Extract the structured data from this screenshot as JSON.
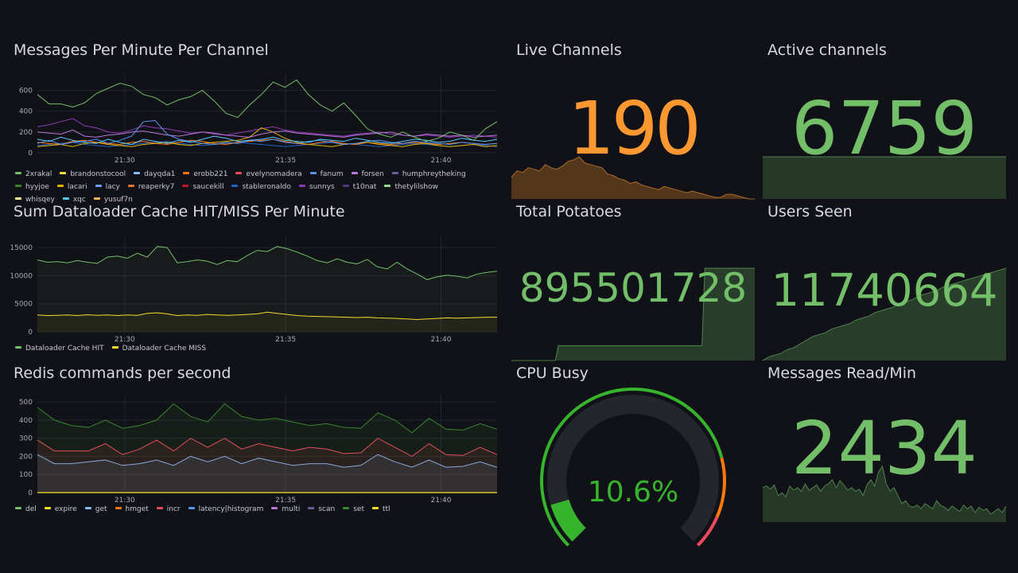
{
  "panels": {
    "messages": {
      "title": "Messages Per Minute Per Channel",
      "legend": [
        {
          "name": "2xrakal",
          "color": "#73bf69"
        },
        {
          "name": "brandonstocool",
          "color": "#fade2a"
        },
        {
          "name": "dayqda1",
          "color": "#8ab8ff"
        },
        {
          "name": "erobb221",
          "color": "#ff780a"
        },
        {
          "name": "evelynomadera",
          "color": "#f2495c"
        },
        {
          "name": "fanum",
          "color": "#5794f2"
        },
        {
          "name": "forsen",
          "color": "#b877d9"
        },
        {
          "name": "humphreytheking",
          "color": "#705da0"
        },
        {
          "name": "hyyjoe",
          "color": "#37872d"
        },
        {
          "name": "lacari",
          "color": "#e0b400"
        },
        {
          "name": "lacy",
          "color": "#6e9fff"
        },
        {
          "name": "reaperky7",
          "color": "#e0752d"
        },
        {
          "name": "saucekill",
          "color": "#c4162a"
        },
        {
          "name": "stableronaldo",
          "color": "#1f60c4"
        },
        {
          "name": "sunnys",
          "color": "#8f3bb8"
        },
        {
          "name": "t10nat",
          "color": "#513a82"
        },
        {
          "name": "thetylilshow",
          "color": "#96d98d"
        },
        {
          "name": "whisqey",
          "color": "#fff899"
        },
        {
          "name": "xqc",
          "color": "#5ac8fa"
        },
        {
          "name": "yusuf7n",
          "color": "#ffb357"
        }
      ]
    },
    "dataloader": {
      "title": "Sum Dataloader Cache HIT/MISS Per Minute",
      "legend": [
        {
          "name": "Dataloader Cache HIT",
          "color": "#73bf69"
        },
        {
          "name": "Dataloader Cache MISS",
          "color": "#fade2a"
        }
      ]
    },
    "redis": {
      "title": "Redis commands per second",
      "legend": [
        {
          "name": "del",
          "color": "#73bf69"
        },
        {
          "name": "expire",
          "color": "#fade2a"
        },
        {
          "name": "get",
          "color": "#8ab8ff"
        },
        {
          "name": "hmget",
          "color": "#ff780a"
        },
        {
          "name": "incr",
          "color": "#f2495c"
        },
        {
          "name": "latency|histogram",
          "color": "#5794f2"
        },
        {
          "name": "multi",
          "color": "#b877d9"
        },
        {
          "name": "scan",
          "color": "#705da0"
        },
        {
          "name": "set",
          "color": "#37872d"
        },
        {
          "name": "ttl",
          "color": "#fade2a"
        }
      ]
    },
    "live_channels": {
      "title": "Live Channels",
      "value": "190",
      "color": "#ff9830"
    },
    "active_channels": {
      "title": "Active channels",
      "value": "6759",
      "color": "#73bf69"
    },
    "total_potatoes": {
      "title": "Total Potatoes",
      "value": "895501728",
      "color": "#73bf69"
    },
    "users_seen": {
      "title": "Users Seen",
      "value": "11740664",
      "color": "#73bf69"
    },
    "cpu_busy": {
      "title": "CPU Busy",
      "value": "10.6%",
      "percent": 10.6,
      "color": "#37b42e"
    },
    "messages_read": {
      "title": "Messages Read/Min",
      "value": "2434",
      "color": "#73bf69"
    }
  },
  "chart_data": [
    {
      "type": "line",
      "title": "Messages Per Minute Per Channel",
      "x_ticks": [
        "21:30",
        "21:35",
        "21:40"
      ],
      "y_ticks": [
        "0",
        "200",
        "400",
        "600"
      ],
      "ylim": [
        0,
        750
      ],
      "series": [
        {
          "name": "2xrakal",
          "values": [
            560,
            470,
            470,
            440,
            480,
            570,
            620,
            670,
            640,
            560,
            530,
            460,
            510,
            540,
            600,
            500,
            380,
            340,
            460,
            560,
            680,
            630,
            700,
            560,
            460,
            400,
            480,
            360,
            230,
            180,
            150,
            200,
            150,
            110,
            140,
            200,
            170,
            120,
            230,
            300
          ]
        },
        {
          "name": "xqc",
          "values": [
            130,
            110,
            150,
            120,
            100,
            90,
            130,
            100,
            80,
            130,
            110,
            90,
            120,
            100,
            130,
            160,
            140,
            110,
            120,
            130,
            150,
            120,
            110,
            100,
            130,
            120,
            110,
            140,
            120,
            100,
            90,
            110,
            130,
            120,
            100,
            110,
            140,
            120,
            110,
            130
          ]
        },
        {
          "name": "fanum",
          "values": [
            90,
            120,
            80,
            100,
            110,
            130,
            90,
            120,
            160,
            300,
            310,
            180,
            130,
            110,
            90,
            80,
            100,
            90,
            120,
            110,
            130,
            100,
            90,
            110,
            120,
            100,
            80,
            90,
            110,
            120,
            100,
            90,
            110,
            100,
            90,
            80,
            100,
            90,
            80,
            90
          ]
        },
        {
          "name": "forsen",
          "values": [
            200,
            190,
            180,
            220,
            160,
            150,
            170,
            180,
            200,
            210,
            190,
            170,
            160,
            180,
            200,
            190,
            170,
            160,
            150,
            180,
            200,
            210,
            190,
            180,
            170,
            160,
            150,
            170,
            180,
            190,
            200,
            170,
            160,
            180,
            170,
            160,
            170,
            150,
            160,
            170
          ]
        },
        {
          "name": "lacari",
          "values": [
            60,
            70,
            80,
            60,
            90,
            100,
            80,
            70,
            60,
            80,
            90,
            100,
            80,
            70,
            90,
            100,
            110,
            120,
            150,
            240,
            200,
            140,
            100,
            80,
            70,
            60,
            80,
            90,
            100,
            80,
            70,
            60,
            80,
            90,
            70,
            60,
            70,
            80,
            60,
            70
          ]
        },
        {
          "name": "erobb221",
          "values": [
            100,
            90,
            80,
            110,
            120,
            100,
            90,
            80,
            100,
            110,
            90,
            80,
            100,
            120,
            110,
            90,
            80,
            100,
            110,
            120,
            130,
            110,
            90,
            80,
            100,
            110,
            90,
            80,
            100,
            90,
            80,
            90,
            100,
            90,
            80,
            90,
            100,
            90,
            80,
            90
          ]
        },
        {
          "name": "sunnys",
          "values": [
            250,
            270,
            300,
            330,
            260,
            240,
            200,
            190,
            220,
            260,
            240,
            230,
            210,
            190,
            200,
            180,
            170,
            190,
            210,
            230,
            250,
            220,
            200,
            190,
            180,
            170,
            160,
            180,
            190,
            200,
            180,
            170,
            160,
            170,
            160,
            150,
            160,
            170,
            160,
            150
          ]
        },
        {
          "name": "stableronaldo",
          "values": [
            70,
            80,
            90,
            100,
            80,
            70,
            60,
            70,
            80,
            90,
            100,
            110,
            90,
            80,
            70,
            80,
            90,
            100,
            90,
            80,
            70,
            60,
            70,
            80,
            90,
            100,
            90,
            80,
            70,
            60,
            70,
            80,
            90,
            80,
            70,
            60,
            70,
            80,
            70,
            60
          ]
        }
      ]
    },
    {
      "type": "area",
      "title": "Sum Dataloader Cache HIT/MISS Per Minute",
      "x_ticks": [
        "21:30",
        "21:35",
        "21:40"
      ],
      "y_ticks": [
        "0",
        "5000",
        "10000",
        "15000"
      ],
      "ylim": [
        0,
        17000
      ],
      "series": [
        {
          "name": "Dataloader Cache HIT",
          "values": [
            12800,
            12400,
            12500,
            12300,
            12700,
            12400,
            12200,
            13300,
            13500,
            13100,
            14000,
            13300,
            15200,
            15000,
            12300,
            12500,
            12800,
            12600,
            12000,
            12700,
            12500,
            13600,
            14500,
            14300,
            15200,
            14800,
            14200,
            13500,
            12700,
            12300,
            13000,
            12400,
            12100,
            12900,
            11600,
            11200,
            12400,
            11200,
            10300,
            9300,
            9800,
            10100,
            9900,
            9600,
            10300,
            10600,
            10800
          ]
        },
        {
          "name": "Dataloader Cache MISS",
          "values": [
            3000,
            2900,
            2950,
            3000,
            2900,
            3050,
            2950,
            3000,
            2900,
            3000,
            2950,
            3300,
            3400,
            3200,
            2900,
            3000,
            2950,
            3100,
            3000,
            2950,
            3000,
            3100,
            3200,
            3500,
            3300,
            3100,
            2900,
            2800,
            2750,
            2700,
            2650,
            2600,
            2550,
            2600,
            2500,
            2450,
            2400,
            2300,
            2200,
            2300,
            2400,
            2500,
            2450,
            2500,
            2550,
            2600,
            2600
          ]
        }
      ]
    },
    {
      "type": "area",
      "title": "Redis commands per second",
      "x_ticks": [
        "21:30",
        "21:35",
        "21:40"
      ],
      "y_ticks": [
        "0",
        "100",
        "200",
        "300",
        "400",
        "500"
      ],
      "ylim": [
        0,
        540
      ],
      "series": [
        {
          "name": "set",
          "values": [
            470,
            400,
            370,
            360,
            400,
            355,
            370,
            400,
            490,
            420,
            390,
            490,
            420,
            400,
            410,
            390,
            370,
            380,
            360,
            355,
            440,
            400,
            330,
            410,
            350,
            345,
            380,
            350
          ]
        },
        {
          "name": "incr",
          "values": [
            290,
            230,
            230,
            230,
            270,
            210,
            240,
            290,
            230,
            300,
            250,
            300,
            240,
            270,
            250,
            230,
            250,
            240,
            215,
            220,
            300,
            250,
            200,
            270,
            210,
            205,
            250,
            210
          ]
        },
        {
          "name": "get",
          "values": [
            210,
            160,
            160,
            170,
            180,
            150,
            160,
            180,
            150,
            200,
            170,
            200,
            160,
            190,
            170,
            150,
            160,
            160,
            140,
            150,
            210,
            170,
            140,
            180,
            140,
            145,
            170,
            140
          ]
        }
      ]
    }
  ]
}
